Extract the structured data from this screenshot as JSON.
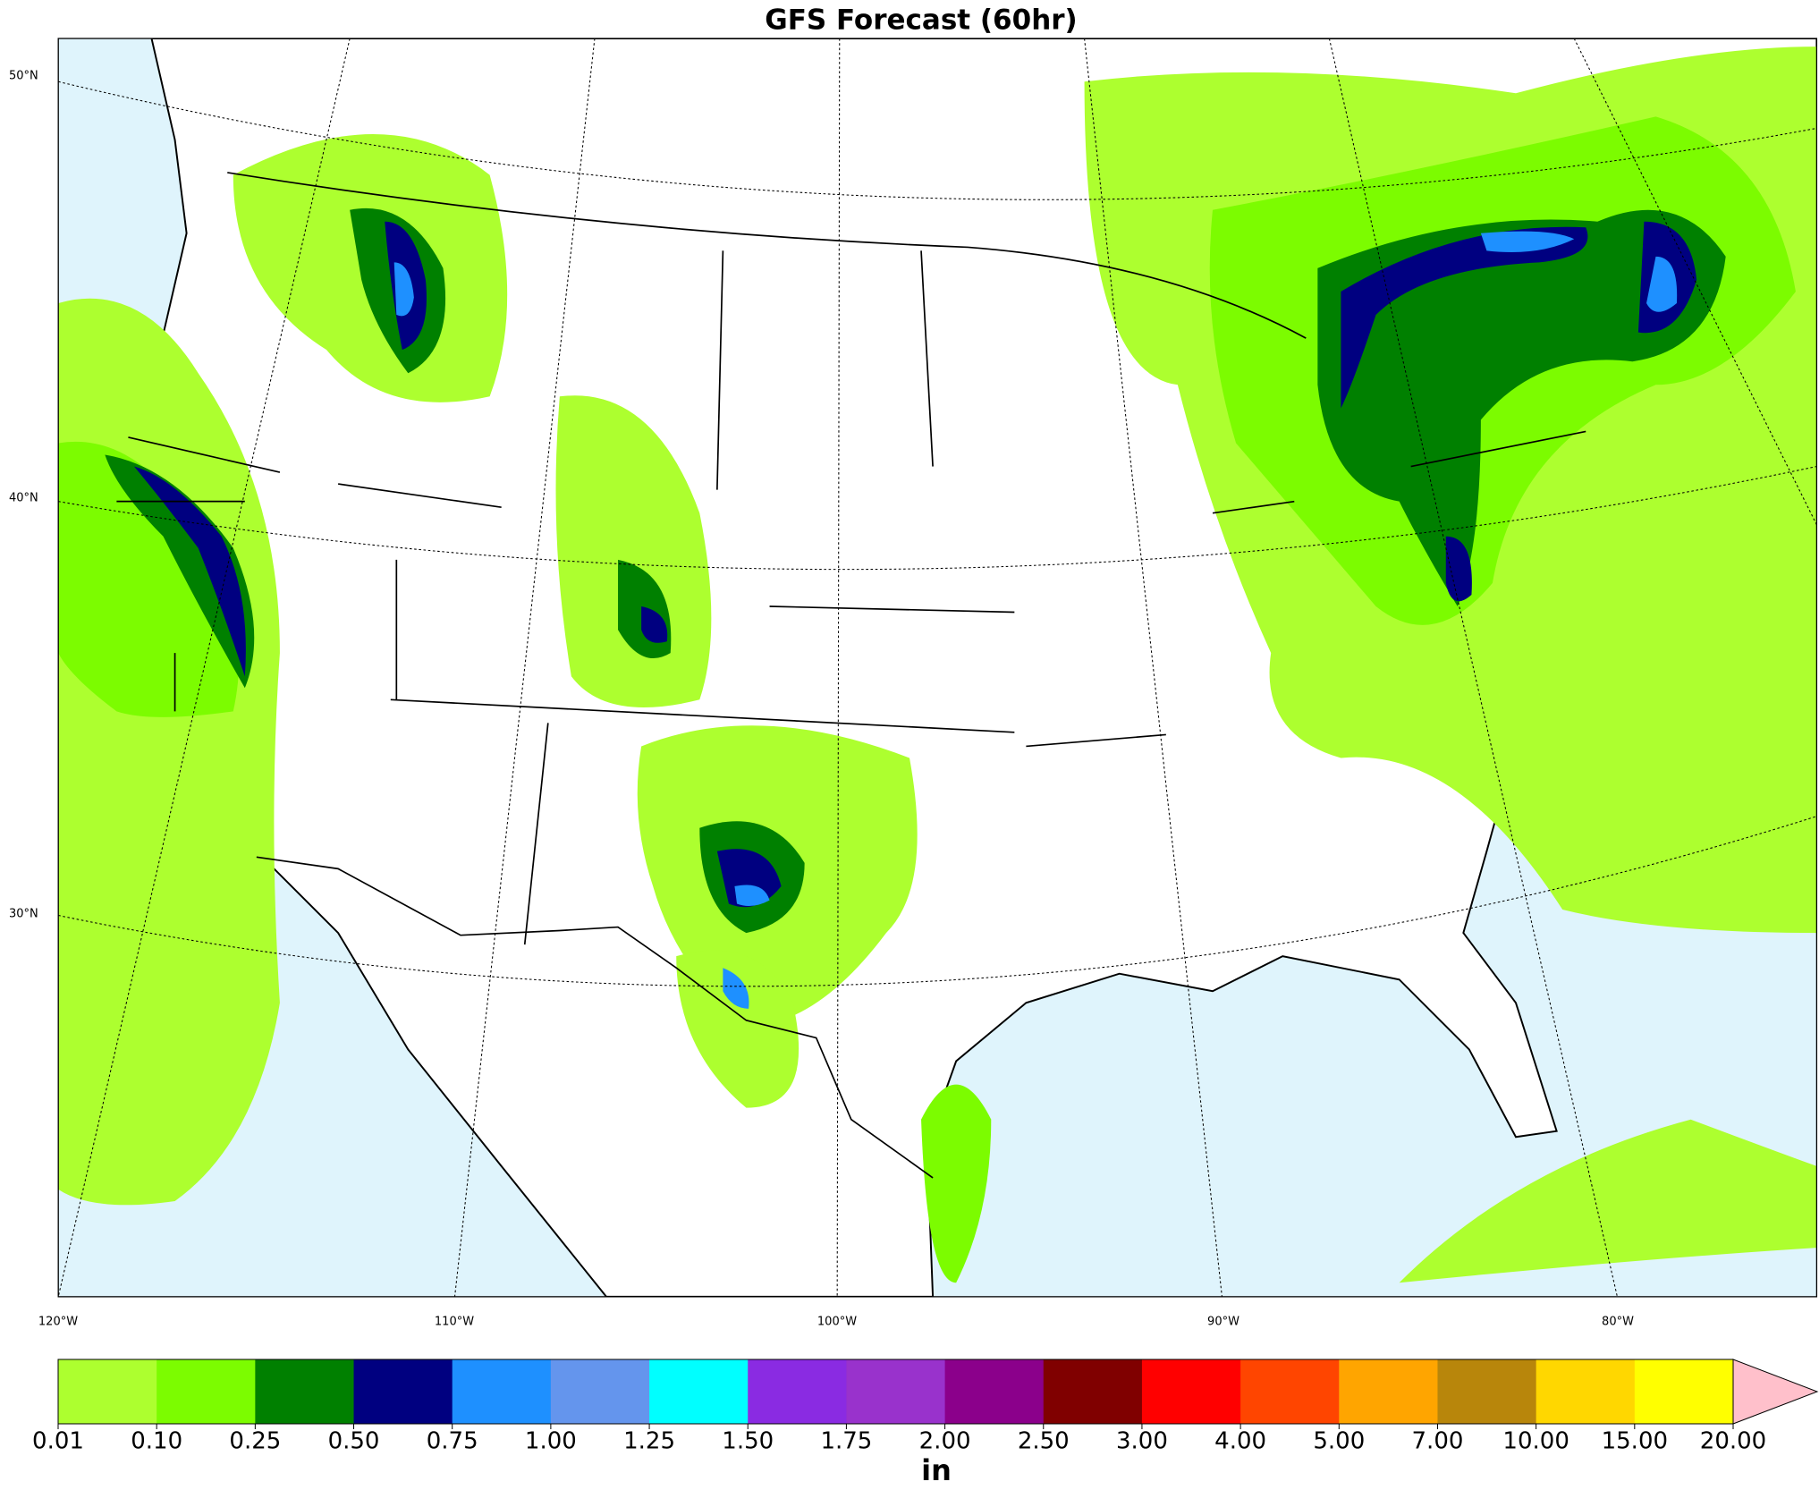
{
  "header": {
    "title": "GFS Forecast (60hr)"
  },
  "map": {
    "lat_labels": [
      "50°N",
      "40°N",
      "30°N"
    ],
    "lon_labels": [
      "120°W",
      "110°W",
      "100°W",
      "90°W",
      "80°W"
    ]
  },
  "colorbar": {
    "colors": [
      "#adff2f",
      "#7cfc00",
      "#008000",
      "#000080",
      "#1e90ff",
      "#6495ed",
      "#00ffff",
      "#8a2be2",
      "#9932cc",
      "#8b008b",
      "#800000",
      "#ff0000",
      "#ff4500",
      "#ffa500",
      "#b8860b",
      "#ffd700",
      "#ffff00"
    ],
    "extend_color": "#ffc0cb",
    "ticks": [
      "0.01",
      "0.10",
      "0.25",
      "0.50",
      "0.75",
      "1.00",
      "1.25",
      "1.50",
      "1.75",
      "2.00",
      "2.50",
      "3.00",
      "4.00",
      "5.00",
      "7.00",
      "10.00",
      "15.00",
      "20.00"
    ],
    "unit": "in"
  }
}
